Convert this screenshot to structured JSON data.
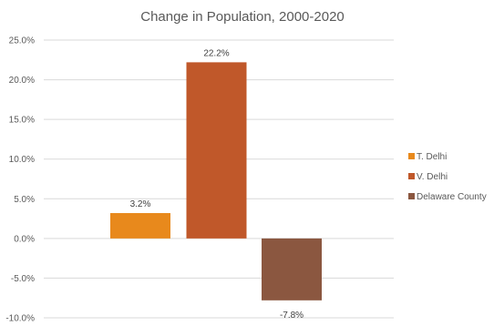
{
  "chart_data": {
    "type": "bar",
    "title": "Change in Population, 2000-2020",
    "xlabel": "",
    "ylabel": "",
    "categories": [
      "T. Delhi",
      "V. Delhi",
      "Delaware County"
    ],
    "values": [
      3.2,
      22.2,
      -7.8
    ],
    "data_labels": [
      "3.2%",
      "22.2%",
      "-7.8%"
    ],
    "colors": [
      "#E8891C",
      "#C0582A",
      "#8B5740"
    ],
    "ylim": [
      -10,
      25
    ],
    "yticks": [
      25,
      20,
      15,
      10,
      5,
      0,
      -5,
      -10
    ],
    "ytick_labels": [
      "25.0%",
      "20.0%",
      "15.0%",
      "10.0%",
      "5.0%",
      "0.0%",
      "-5.0%",
      "-10.0%"
    ],
    "grid": true,
    "legend_position": "right",
    "legend": [
      {
        "label": "T. Delhi",
        "color": "#E8891C"
      },
      {
        "label": "V. Delhi",
        "color": "#C0582A"
      },
      {
        "label": "Delaware County",
        "color": "#8B5740"
      }
    ]
  }
}
